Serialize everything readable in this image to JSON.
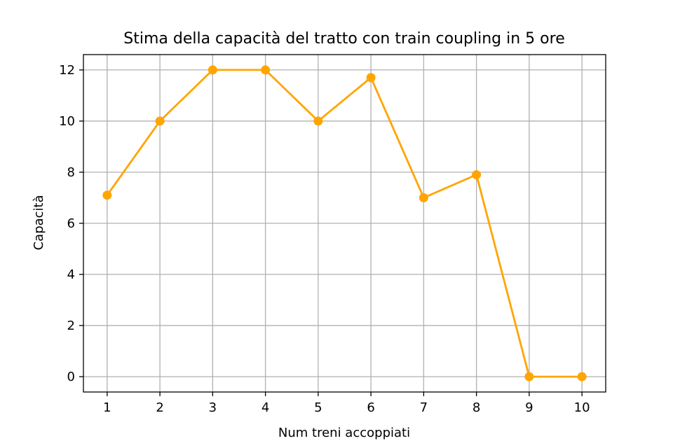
{
  "chart_data": {
    "type": "line",
    "title": "Stima della capacità del tratto con train coupling in 5 ore",
    "xlabel": "Num treni accoppiati",
    "ylabel": "Capacità",
    "x": [
      1,
      2,
      3,
      4,
      5,
      6,
      7,
      8,
      9,
      10
    ],
    "xlim": [
      0.55,
      10.45
    ],
    "ylim": [
      -0.6,
      12.6
    ],
    "xticks": [
      1,
      2,
      3,
      4,
      5,
      6,
      7,
      8,
      9,
      10
    ],
    "yticks": [
      0,
      2,
      4,
      6,
      8,
      10,
      12
    ],
    "grid": true,
    "series": [
      {
        "values": [
          7.1,
          10,
          12,
          12,
          10,
          11.7,
          7,
          7.9,
          0,
          0
        ],
        "color": "#FFA500",
        "marker": "circle"
      }
    ]
  }
}
